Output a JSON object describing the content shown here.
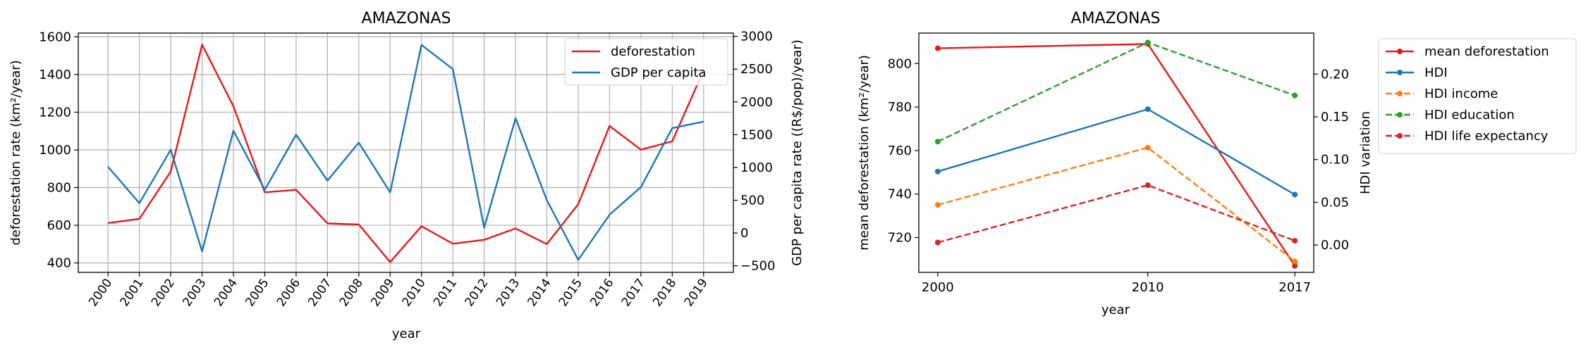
{
  "chart_data": [
    {
      "type": "line",
      "title": "AMAZONAS",
      "xlabel": "year",
      "ylabel": "deforestation rate (km²/year)",
      "ylabel_right": "GDP per capita rate ((R$/pop)/year)",
      "grid": true,
      "legend_position": "top-right",
      "x": [
        "2000",
        "2001",
        "2002",
        "2003",
        "2004",
        "2005",
        "2006",
        "2007",
        "2008",
        "2009",
        "2010",
        "2011",
        "2012",
        "2013",
        "2014",
        "2015",
        "2016",
        "2017",
        "2018",
        "2019"
      ],
      "ylim": [
        350,
        1620
      ],
      "y_ticks": [
        400,
        600,
        800,
        1000,
        1200,
        1400,
        1600
      ],
      "ylim_right": [
        -600,
        3050
      ],
      "y_ticks_right": [
        -500,
        0,
        500,
        1000,
        1500,
        2000,
        2500,
        3000
      ],
      "series": [
        {
          "name": "deforestation",
          "axis": "left",
          "color": "#e41a1c",
          "values": [
            612,
            634,
            885,
            1558,
            1232,
            775,
            788,
            610,
            604,
            405,
            595,
            502,
            523,
            583,
            500,
            712,
            1127,
            1001,
            1045,
            1422
          ]
        },
        {
          "name": "GDP per capita",
          "axis": "right",
          "color": "#1f77b4",
          "values": [
            1010,
            455,
            1270,
            -280,
            1560,
            660,
            1500,
            800,
            1380,
            620,
            2870,
            2500,
            80,
            1750,
            500,
            -410,
            280,
            700,
            1600,
            1700
          ]
        }
      ]
    },
    {
      "type": "line",
      "title": "AMAZONAS",
      "xlabel": "year",
      "ylabel": "mean deforestation (km²/year)",
      "ylabel_right": "HDI variation",
      "grid": false,
      "legend_position": "outside-right",
      "x": [
        "2000",
        "2010",
        "2017"
      ],
      "x_values": [
        2000,
        2010,
        2017
      ],
      "xlim": [
        1999.1,
        2017.9
      ],
      "ylim": [
        704,
        814
      ],
      "y_ticks": [
        720,
        740,
        760,
        780,
        800
      ],
      "ylim_right": [
        -0.032,
        0.248
      ],
      "y_ticks_right": [
        0.0,
        0.05,
        0.1,
        0.15,
        0.2
      ],
      "y_tick_labels_right": [
        "0.00",
        "0.05",
        "0.10",
        "0.15",
        "0.20"
      ],
      "series": [
        {
          "name": "mean deforestation",
          "axis": "left",
          "color": "#e41a1c",
          "dash": false,
          "values": [
            807,
            809,
            707
          ]
        },
        {
          "name": "HDI",
          "axis": "right",
          "color": "#1f77b4",
          "dash": false,
          "values": [
            0.086,
            0.159,
            0.059
          ]
        },
        {
          "name": "HDI income",
          "axis": "right",
          "color": "#ff7f0e",
          "dash": true,
          "values": [
            0.047,
            0.114,
            -0.019
          ]
        },
        {
          "name": "HDI education",
          "axis": "right",
          "color": "#2ca02c",
          "dash": true,
          "values": [
            0.121,
            0.237,
            0.175
          ]
        },
        {
          "name": "HDI life expectancy",
          "axis": "right",
          "color": "#d62728",
          "dash": true,
          "values": [
            0.003,
            0.07,
            0.005
          ]
        }
      ]
    }
  ]
}
